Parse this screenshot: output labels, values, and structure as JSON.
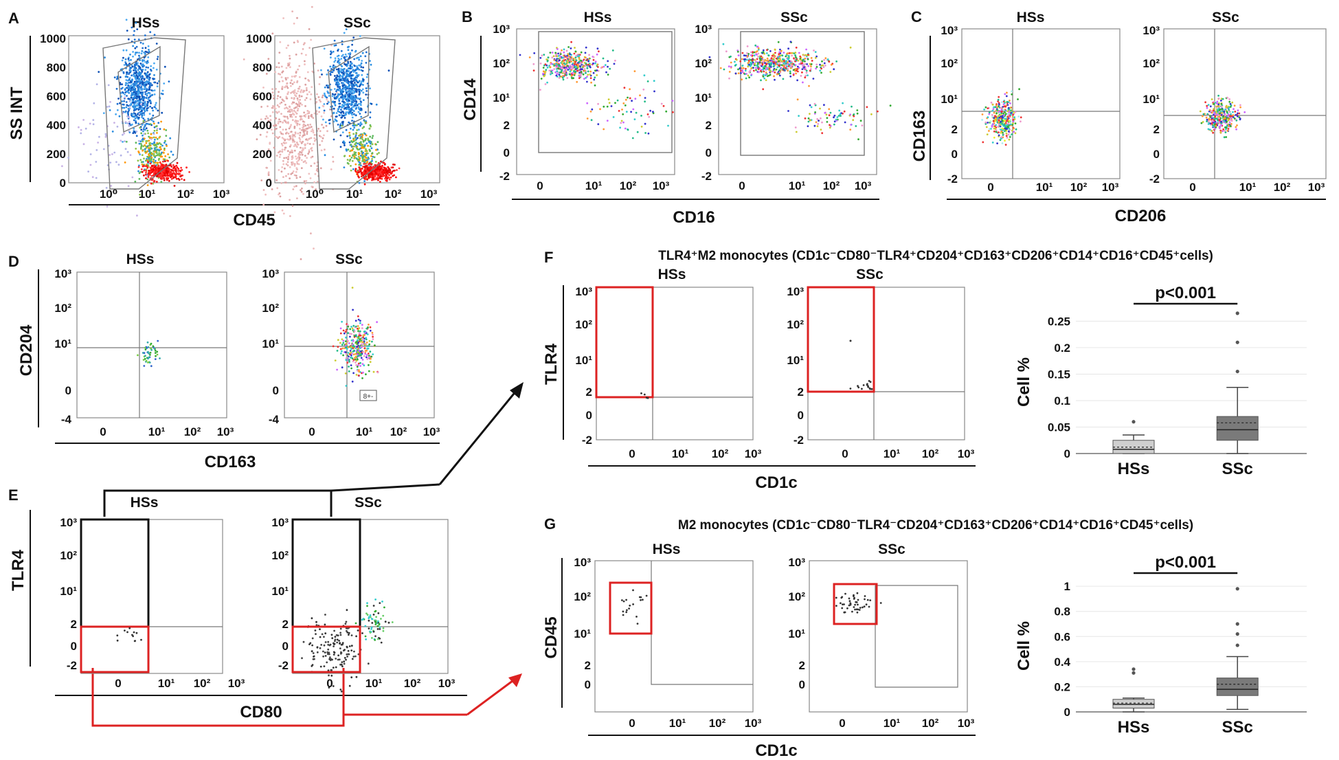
{
  "panels": {
    "A": {
      "letter": "A",
      "y_label": "SS INT",
      "x_label": "CD45",
      "plots": [
        "HSs",
        "SSc"
      ],
      "y_ticks": [
        "1000",
        "800",
        "600",
        "400",
        "200",
        "0"
      ],
      "x_ticks": [
        "10⁰",
        "10¹",
        "10²",
        "10³"
      ]
    },
    "B": {
      "letter": "B",
      "y_label": "CD14",
      "x_label": "CD16",
      "plots": [
        "HSs",
        "SSc"
      ],
      "y_ticks": [
        "10³",
        "10²",
        "10¹",
        "2",
        "0",
        "-2"
      ],
      "x_ticks": [
        "0",
        "10¹",
        "10²",
        "10³"
      ]
    },
    "C": {
      "letter": "C",
      "y_label": "CD163",
      "x_label": "CD206",
      "plots": [
        "HSs",
        "SSc"
      ],
      "y_ticks": [
        "10³",
        "10²",
        "10¹",
        "2",
        "0",
        "-2"
      ],
      "x_ticks": [
        "0",
        "10¹",
        "10²",
        "10³"
      ]
    },
    "D": {
      "letter": "D",
      "y_label": "CD204",
      "x_label": "CD163",
      "plots": [
        "HSs",
        "SSc"
      ],
      "y_ticks": [
        "10³",
        "10²",
        "10¹",
        "0",
        "-4"
      ],
      "x_ticks": [
        "0",
        "10¹",
        "10²",
        "10³"
      ],
      "annotation": "8+-"
    },
    "E": {
      "letter": "E",
      "y_label": "TLR4",
      "x_label": "CD80",
      "plots": [
        "HSs",
        "SSc"
      ],
      "y_ticks": [
        "10³",
        "10²",
        "10¹",
        "2",
        "0",
        "-2"
      ],
      "x_ticks": [
        "0",
        "10¹",
        "10²",
        "10³"
      ]
    },
    "F": {
      "letter": "F",
      "title": "TLR4⁺M2 monocytes (CD1c⁻CD80⁻TLR4⁺CD204⁺CD163⁺CD206⁺CD14⁺CD16⁺CD45⁺cells)",
      "y_label": "TLR4",
      "x_label": "CD1c",
      "plots": [
        "HSs",
        "SSc"
      ],
      "y_ticks": [
        "10³",
        "10²",
        "10¹",
        "2",
        "0",
        "-2"
      ],
      "x_ticks": [
        "0",
        "10¹",
        "10²",
        "10³"
      ]
    },
    "G": {
      "letter": "G",
      "title": "M2 monocytes (CD1c⁻CD80⁻TLR4⁻CD204⁺CD163⁺CD206⁺CD14⁺CD16⁺CD45⁺cells)",
      "y_label": "CD45",
      "x_label": "CD1c",
      "plots": [
        "HSs",
        "SSc"
      ],
      "y_ticks": [
        "10³",
        "10²",
        "10¹",
        "2",
        "0"
      ],
      "x_ticks": [
        "0",
        "10¹",
        "10²",
        "10³"
      ]
    }
  },
  "chart_data": [
    {
      "type": "box",
      "id": "F-box",
      "title": "",
      "ylabel": "Cell %",
      "ylim": [
        0,
        0.27
      ],
      "yticks": [
        "0",
        "0.05",
        "0.1",
        "0.15",
        "0.2",
        "0.25"
      ],
      "ytick_values": [
        0,
        0.05,
        0.1,
        0.15,
        0.2,
        0.25
      ],
      "significance": "p<0.001",
      "categories": [
        "HSs",
        "SSc"
      ],
      "boxes": [
        {
          "name": "HSs",
          "min": 0,
          "q1": 0.0,
          "median": 0.008,
          "mean": 0.012,
          "q3": 0.025,
          "max": 0.035,
          "outliers": [
            0.06
          ],
          "color": "#cfcfcf"
        },
        {
          "name": "SSc",
          "min": 0,
          "q1": 0.025,
          "median": 0.045,
          "mean": 0.058,
          "q3": 0.07,
          "max": 0.125,
          "outliers": [
            0.155,
            0.21,
            0.265
          ],
          "color": "#7a7a7a"
        }
      ]
    },
    {
      "type": "box",
      "id": "G-box",
      "title": "",
      "ylabel": "Cell %",
      "ylim": [
        0,
        1.05
      ],
      "yticks": [
        "0",
        "0.2",
        "0.4",
        "0.6",
        "0.8",
        "1"
      ],
      "ytick_values": [
        0,
        0.2,
        0.4,
        0.6,
        0.8,
        1
      ],
      "significance": "p<0.001",
      "categories": [
        "HSs",
        "SSc"
      ],
      "boxes": [
        {
          "name": "HSs",
          "min": 0,
          "q1": 0.03,
          "median": 0.06,
          "mean": 0.07,
          "q3": 0.1,
          "max": 0.11,
          "outliers": [
            0.31,
            0.34
          ],
          "color": "#cfcfcf"
        },
        {
          "name": "SSc",
          "min": 0.02,
          "q1": 0.13,
          "median": 0.18,
          "mean": 0.22,
          "q3": 0.27,
          "max": 0.44,
          "outliers": [
            0.53,
            0.62,
            0.7,
            0.98
          ],
          "color": "#7a7a7a"
        }
      ]
    }
  ]
}
